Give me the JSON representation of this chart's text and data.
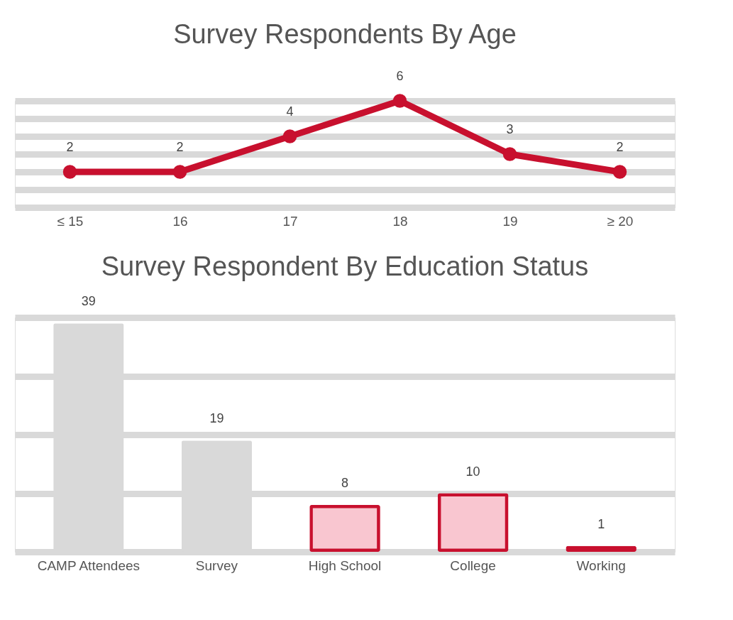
{
  "chart_data": [
    {
      "type": "line",
      "title": "Survey Respondents By Age",
      "categories": [
        "≤ 15",
        "16",
        "17",
        "18",
        "19",
        "≥ 20"
      ],
      "series": [
        {
          "color": "#c8102e",
          "values": [
            2,
            2,
            4,
            6,
            3,
            2
          ]
        }
      ],
      "grid": "y",
      "marker": "circle",
      "line_style": "solid",
      "data_labels": true,
      "tick_labels": "x"
    },
    {
      "type": "bar",
      "title": "Survey Respondent By Education Status",
      "categories": [
        "CAMP Attendees",
        "Survey",
        "High School",
        "College",
        "Working"
      ],
      "values": [
        39,
        19,
        8,
        10,
        1
      ],
      "colors": [
        "#d9d9d9",
        "#d9d9d9",
        "#f9c6d0",
        "#f9c6d0",
        "#f9c6d0"
      ],
      "grid": "y",
      "data_labels": true,
      "tick_labels": "x"
    }
  ]
}
